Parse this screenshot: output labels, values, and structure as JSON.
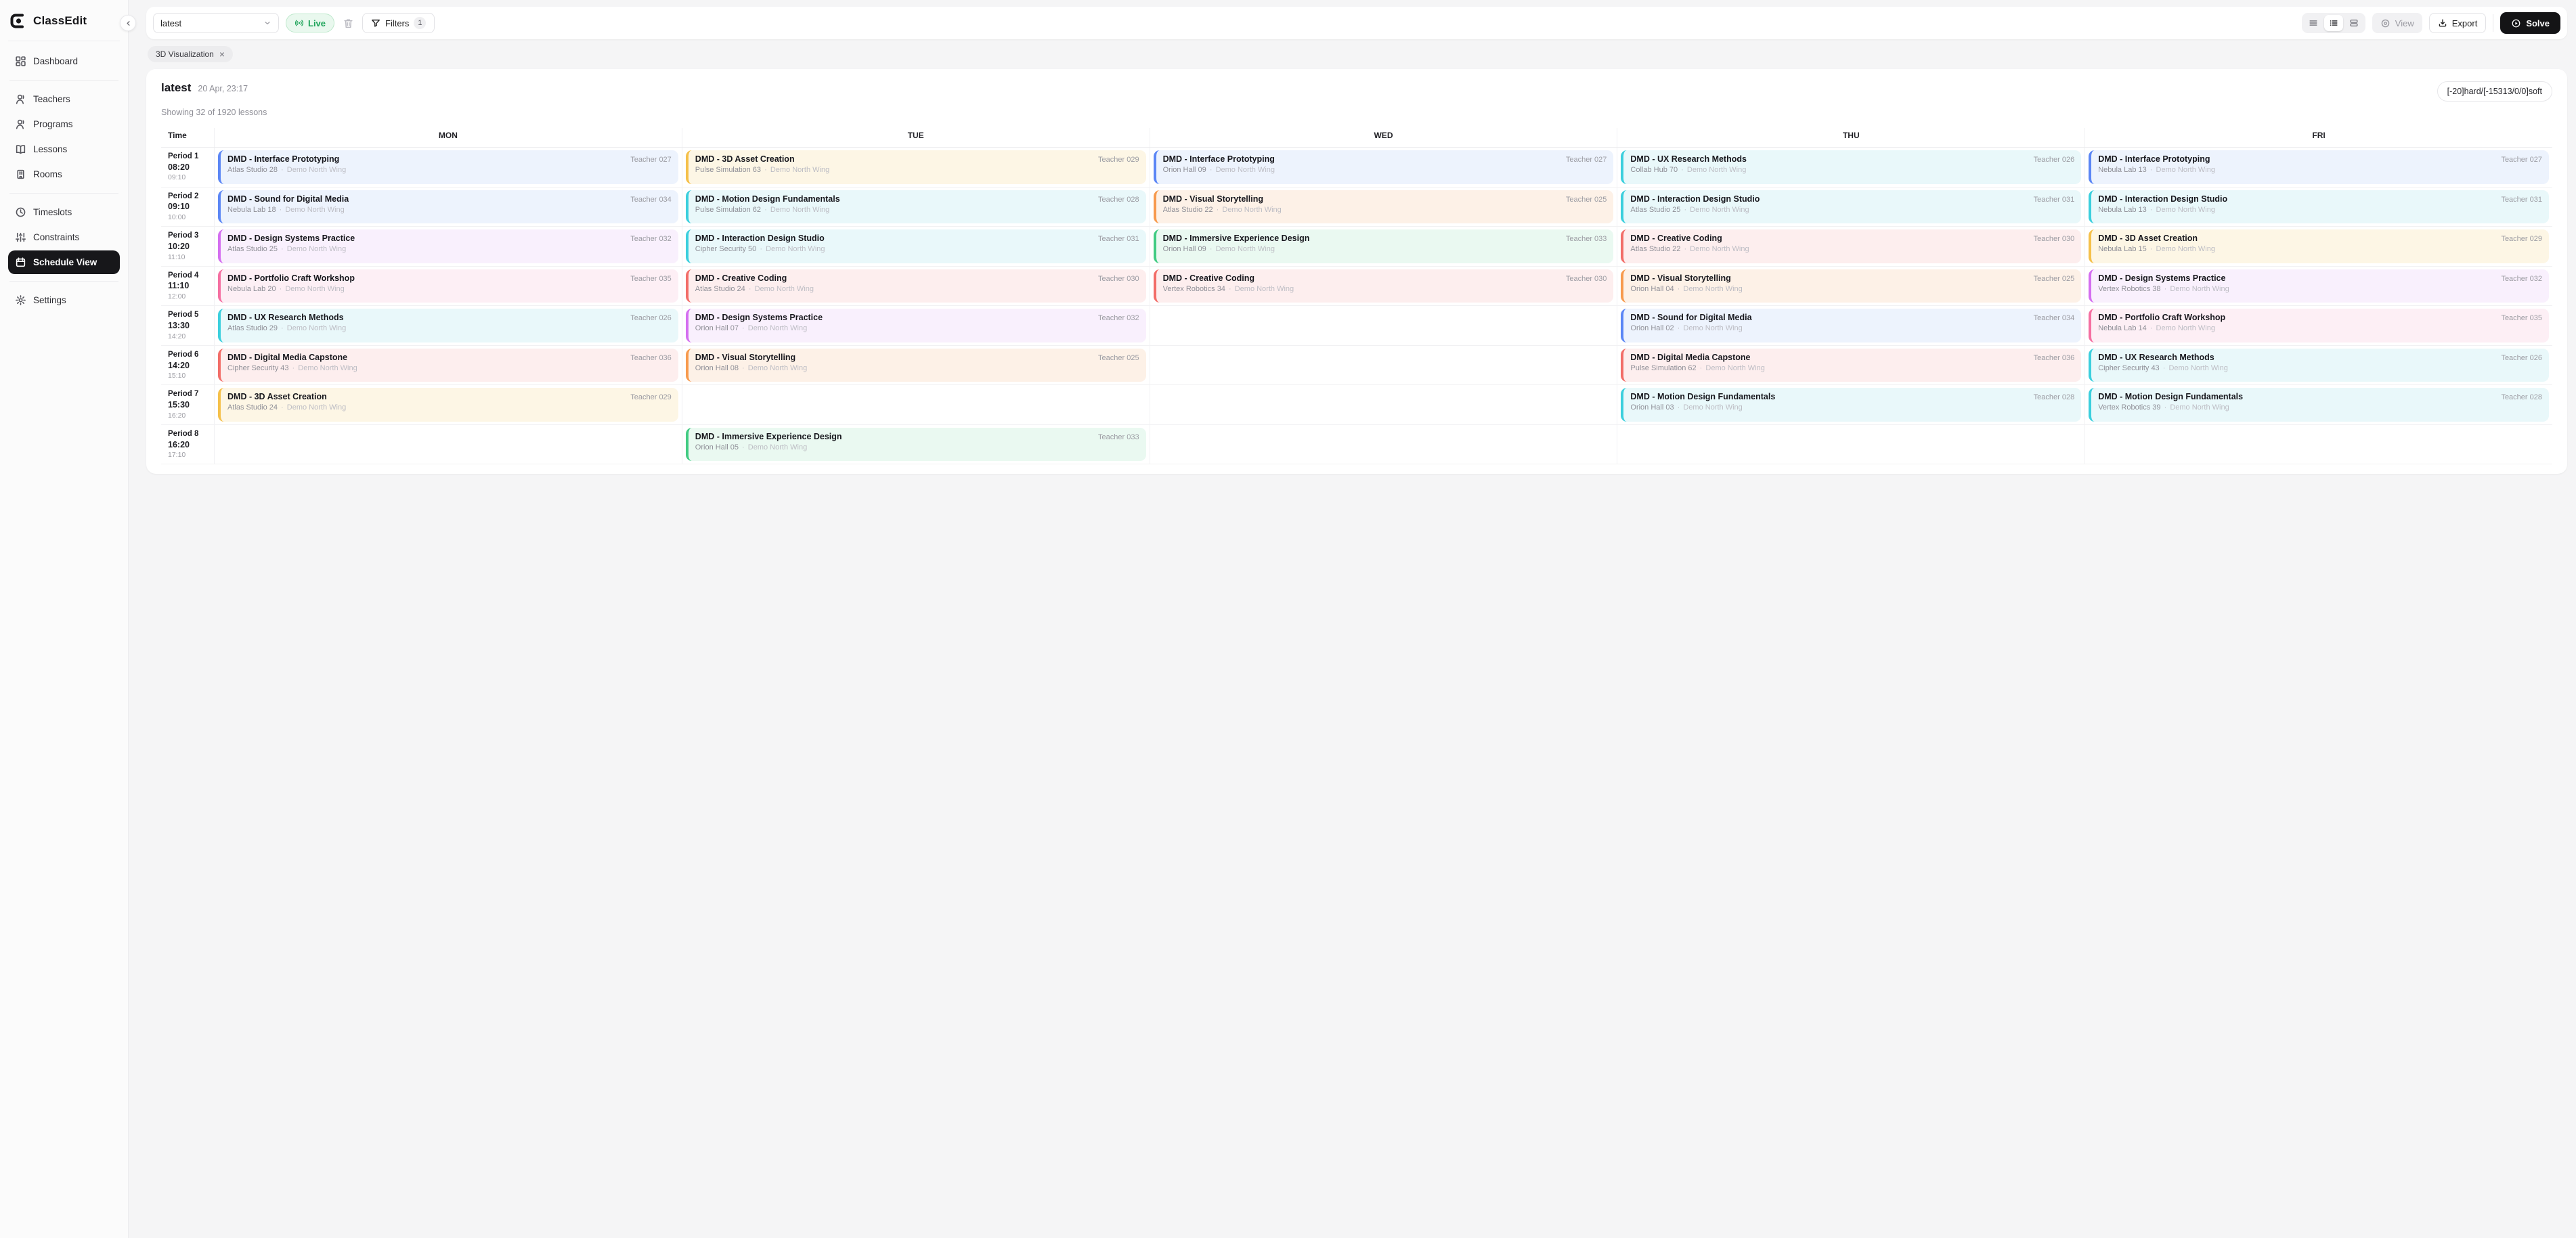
{
  "sidebar": {
    "brand": "ClassEdit",
    "items": [
      {
        "label": "Dashboard",
        "icon": "dashboard-icon"
      },
      {
        "label": "Teachers",
        "icon": "person-icon"
      },
      {
        "label": "Programs",
        "icon": "person-icon"
      },
      {
        "label": "Lessons",
        "icon": "book-icon"
      },
      {
        "label": "Rooms",
        "icon": "building-icon"
      },
      {
        "label": "Timeslots",
        "icon": "clock-icon"
      },
      {
        "label": "Constraints",
        "icon": "sliders-icon"
      },
      {
        "label": "Schedule View",
        "icon": "calendar-icon",
        "active": true
      },
      {
        "label": "Settings",
        "icon": "gear-icon"
      }
    ]
  },
  "toolbar": {
    "schedule_select": {
      "value": "latest"
    },
    "live": {
      "label": "Live"
    },
    "filters": {
      "label": "Filters",
      "count": "1"
    },
    "view": {
      "label": "View"
    },
    "export": {
      "label": "Export"
    },
    "solve": {
      "label": "Solve"
    }
  },
  "chips": [
    {
      "label": "3D Visualization"
    }
  ],
  "colors": {
    "accent_dark": "#141416",
    "live_green": "#1ea45a",
    "live_bg": "#e9f8ee",
    "sidebar_active": "#17171a"
  },
  "schedule": {
    "title": "latest",
    "saved_at": "20 Apr, 23:17",
    "summary": "Showing 32 of 1920 lessons",
    "score": "[-20]hard/[-15313/0/0]soft",
    "columns": [
      "Time",
      "MON",
      "TUE",
      "WED",
      "THU",
      "FRI"
    ],
    "day_order": [
      "MON",
      "TUE",
      "WED",
      "THU",
      "FRI"
    ],
    "room_wing_separator": "·",
    "periods": [
      {
        "label": "Period 1",
        "start": "08:20",
        "end": "09:10"
      },
      {
        "label": "Period 2",
        "start": "09:10",
        "end": "10:00"
      },
      {
        "label": "Period 3",
        "start": "10:20",
        "end": "11:10"
      },
      {
        "label": "Period 4",
        "start": "11:10",
        "end": "12:00"
      },
      {
        "label": "Period 5",
        "start": "13:30",
        "end": "14:20"
      },
      {
        "label": "Period 6",
        "start": "14:20",
        "end": "15:10"
      },
      {
        "label": "Period 7",
        "start": "15:30",
        "end": "16:20"
      },
      {
        "label": "Period 8",
        "start": "16:20",
        "end": "17:10"
      }
    ],
    "palette": {
      "blue": {
        "border": "#5b86f5",
        "bg": "#edf3fd"
      },
      "cyan": {
        "border": "#3bcfdd",
        "bg": "#e9f8fa"
      },
      "magenta": {
        "border": "#d46ef0",
        "bg": "#f9f0fd"
      },
      "pink": {
        "border": "#f56fa1",
        "bg": "#fdeff5"
      },
      "red": {
        "border": "#f26d68",
        "bg": "#fdeeee"
      },
      "amber": {
        "border": "#f5c04a",
        "bg": "#fdf6e5"
      },
      "orange": {
        "border": "#f79a4d",
        "bg": "#fdf1e7"
      },
      "green": {
        "border": "#41cb82",
        "bg": "#eaf9f1"
      }
    },
    "lessons": {
      "MON": [
        {
          "title": "DMD - Interface Prototyping",
          "teacher": "Teacher 027",
          "room": "Atlas Studio 28",
          "wing": "Demo North Wing",
          "color": "blue"
        },
        {
          "title": "DMD - Sound for Digital Media",
          "teacher": "Teacher 034",
          "room": "Nebula Lab 18",
          "wing": "Demo North Wing",
          "color": "blue"
        },
        {
          "title": "DMD - Design Systems Practice",
          "teacher": "Teacher 032",
          "room": "Atlas Studio 25",
          "wing": "Demo North Wing",
          "color": "magenta"
        },
        {
          "title": "DMD - Portfolio Craft Workshop",
          "teacher": "Teacher 035",
          "room": "Nebula Lab 20",
          "wing": "Demo North Wing",
          "color": "pink"
        },
        {
          "title": "DMD - UX Research Methods",
          "teacher": "Teacher 026",
          "room": "Atlas Studio 29",
          "wing": "Demo North Wing",
          "color": "cyan"
        },
        {
          "title": "DMD - Digital Media Capstone",
          "teacher": "Teacher 036",
          "room": "Cipher Security 43",
          "wing": "Demo North Wing",
          "color": "red"
        },
        {
          "title": "DMD - 3D Asset Creation",
          "teacher": "Teacher 029",
          "room": "Atlas Studio 24",
          "wing": "Demo North Wing",
          "color": "amber"
        },
        null
      ],
      "TUE": [
        {
          "title": "DMD - 3D Asset Creation",
          "teacher": "Teacher 029",
          "room": "Pulse Simulation 63",
          "wing": "Demo North Wing",
          "color": "amber"
        },
        {
          "title": "DMD - Motion Design Fundamentals",
          "teacher": "Teacher 028",
          "room": "Pulse Simulation 62",
          "wing": "Demo North Wing",
          "color": "cyan"
        },
        {
          "title": "DMD - Interaction Design Studio",
          "teacher": "Teacher 031",
          "room": "Cipher Security 50",
          "wing": "Demo North Wing",
          "color": "cyan"
        },
        {
          "title": "DMD - Creative Coding",
          "teacher": "Teacher 030",
          "room": "Atlas Studio 24",
          "wing": "Demo North Wing",
          "color": "red"
        },
        {
          "title": "DMD - Design Systems Practice",
          "teacher": "Teacher 032",
          "room": "Orion Hall 07",
          "wing": "Demo North Wing",
          "color": "magenta"
        },
        {
          "title": "DMD - Visual Storytelling",
          "teacher": "Teacher 025",
          "room": "Orion Hall 08",
          "wing": "Demo North Wing",
          "color": "orange"
        },
        null,
        {
          "title": "DMD - Immersive Experience Design",
          "teacher": "Teacher 033",
          "room": "Orion Hall 05",
          "wing": "Demo North Wing",
          "color": "green"
        }
      ],
      "WED": [
        {
          "title": "DMD - Interface Prototyping",
          "teacher": "Teacher 027",
          "room": "Orion Hall 09",
          "wing": "Demo North Wing",
          "color": "blue"
        },
        {
          "title": "DMD - Visual Storytelling",
          "teacher": "Teacher 025",
          "room": "Atlas Studio 22",
          "wing": "Demo North Wing",
          "color": "orange"
        },
        {
          "title": "DMD - Immersive Experience Design",
          "teacher": "Teacher 033",
          "room": "Orion Hall 09",
          "wing": "Demo North Wing",
          "color": "green"
        },
        {
          "title": "DMD - Creative Coding",
          "teacher": "Teacher 030",
          "room": "Vertex Robotics 34",
          "wing": "Demo North Wing",
          "color": "red"
        },
        null,
        null,
        null,
        null
      ],
      "THU": [
        {
          "title": "DMD - UX Research Methods",
          "teacher": "Teacher 026",
          "room": "Collab Hub 70",
          "wing": "Demo North Wing",
          "color": "cyan"
        },
        {
          "title": "DMD - Interaction Design Studio",
          "teacher": "Teacher 031",
          "room": "Atlas Studio 25",
          "wing": "Demo North Wing",
          "color": "cyan"
        },
        {
          "title": "DMD - Creative Coding",
          "teacher": "Teacher 030",
          "room": "Atlas Studio 22",
          "wing": "Demo North Wing",
          "color": "red"
        },
        {
          "title": "DMD - Visual Storytelling",
          "teacher": "Teacher 025",
          "room": "Orion Hall 04",
          "wing": "Demo North Wing",
          "color": "orange"
        },
        {
          "title": "DMD - Sound for Digital Media",
          "teacher": "Teacher 034",
          "room": "Orion Hall 02",
          "wing": "Demo North Wing",
          "color": "blue"
        },
        {
          "title": "DMD - Digital Media Capstone",
          "teacher": "Teacher 036",
          "room": "Pulse Simulation 62",
          "wing": "Demo North Wing",
          "color": "red"
        },
        {
          "title": "DMD - Motion Design Fundamentals",
          "teacher": "Teacher 028",
          "room": "Orion Hall 03",
          "wing": "Demo North Wing",
          "color": "cyan"
        },
        null
      ],
      "FRI": [
        {
          "title": "DMD - Interface Prototyping",
          "teacher": "Teacher 027",
          "room": "Nebula Lab 13",
          "wing": "Demo North Wing",
          "color": "blue"
        },
        {
          "title": "DMD - Interaction Design Studio",
          "teacher": "Teacher 031",
          "room": "Nebula Lab 13",
          "wing": "Demo North Wing",
          "color": "cyan"
        },
        {
          "title": "DMD - 3D Asset Creation",
          "teacher": "Teacher 029",
          "room": "Nebula Lab 15",
          "wing": "Demo North Wing",
          "color": "amber"
        },
        {
          "title": "DMD - Design Systems Practice",
          "teacher": "Teacher 032",
          "room": "Vertex Robotics 38",
          "wing": "Demo North Wing",
          "color": "magenta"
        },
        {
          "title": "DMD - Portfolio Craft Workshop",
          "teacher": "Teacher 035",
          "room": "Nebula Lab 14",
          "wing": "Demo North Wing",
          "color": "pink"
        },
        {
          "title": "DMD - UX Research Methods",
          "teacher": "Teacher 026",
          "room": "Cipher Security 43",
          "wing": "Demo North Wing",
          "color": "cyan"
        },
        {
          "title": "DMD - Motion Design Fundamentals",
          "teacher": "Teacher 028",
          "room": "Vertex Robotics 39",
          "wing": "Demo North Wing",
          "color": "cyan"
        },
        null
      ]
    }
  }
}
